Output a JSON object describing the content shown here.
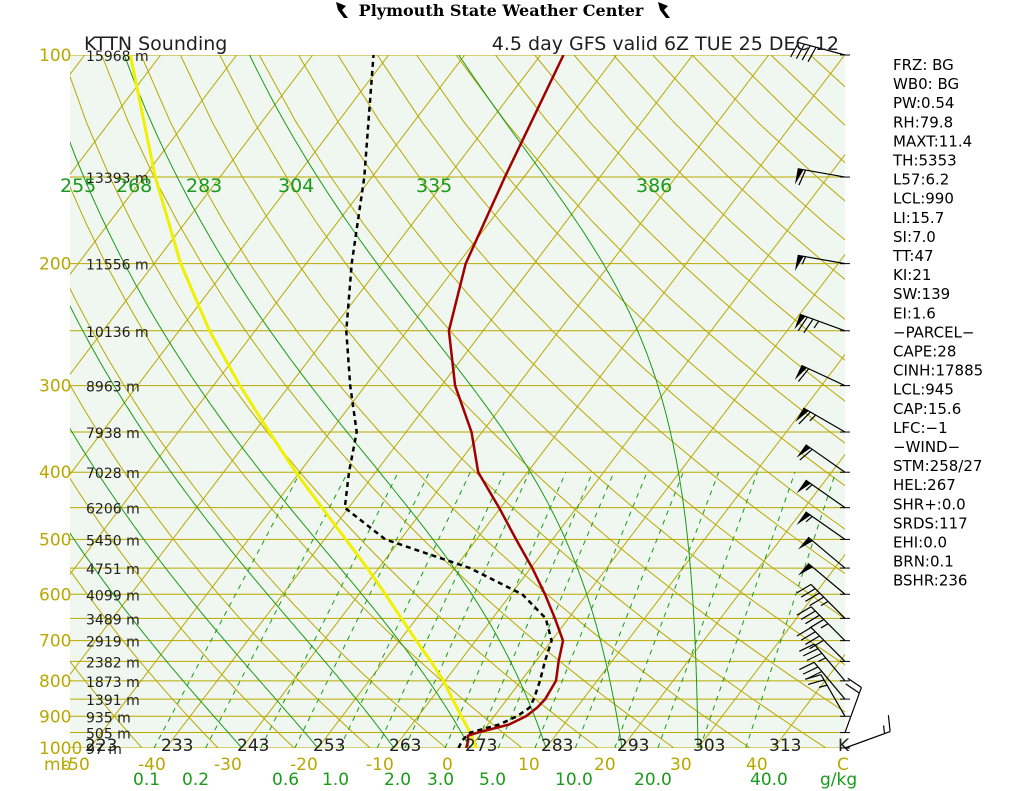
{
  "header": {
    "title": "Plymouth State Weather Center",
    "subtitle_left": "KTTN Sounding",
    "subtitle_right": "4.5 day GFS valid 6Z TUE 25 DEC 12"
  },
  "colors": {
    "background": "#f0f7f0",
    "isobar": "#b8a800",
    "isotherm": "#b8a800",
    "dry_adiabat": "#b8a800",
    "moist_adiabat": "#1a9a1a",
    "mixing_ratio": "#1a9a1a",
    "temperature": "#a00000",
    "dewpoint": "#000000",
    "parcel": "#f0f000",
    "wind": "#000000"
  },
  "icons": {
    "left_flag": "flag-icon",
    "right_flag": "flag-icon"
  },
  "chart_data": {
    "type": "skew-t",
    "pressure_levels": [
      {
        "p": 100,
        "label": "100",
        "height": "15968 m"
      },
      {
        "p": 150,
        "label": "",
        "height": "13393 m"
      },
      {
        "p": 200,
        "label": "200",
        "height": "11556 m"
      },
      {
        "p": 250,
        "label": "",
        "height": "10136 m"
      },
      {
        "p": 300,
        "label": "300",
        "height": "8963 m"
      },
      {
        "p": 350,
        "label": "",
        "height": "7938 m"
      },
      {
        "p": 400,
        "label": "400",
        "height": "7028 m"
      },
      {
        "p": 450,
        "label": "",
        "height": "6206 m"
      },
      {
        "p": 500,
        "label": "500",
        "height": "5450 m"
      },
      {
        "p": 550,
        "label": "",
        "height": "4751 m"
      },
      {
        "p": 600,
        "label": "600",
        "height": "4099 m"
      },
      {
        "p": 650,
        "label": "",
        "height": "3489 m"
      },
      {
        "p": 700,
        "label": "700",
        "height": "2919 m"
      },
      {
        "p": 750,
        "label": "",
        "height": "2382 m"
      },
      {
        "p": 800,
        "label": "800",
        "height": "1873 m"
      },
      {
        "p": 850,
        "label": "",
        "height": "1391 m"
      },
      {
        "p": 900,
        "label": "900",
        "height": "935 m"
      },
      {
        "p": 950,
        "label": "",
        "height": "505 m"
      },
      {
        "p": 1000,
        "label": "1000",
        "height": "97 m"
      }
    ],
    "pressure_unit": "mb",
    "temperature_ticks": [
      "-50",
      "-40",
      "-30",
      "-20",
      "-10",
      "0",
      "10",
      "20",
      "30",
      "40"
    ],
    "temperature_unit": "C",
    "kelvin_ticks": [
      "223",
      "233",
      "243",
      "253",
      "263",
      "273",
      "283",
      "293",
      "303",
      "313"
    ],
    "kelvin_unit": "K",
    "mixing_ratio_ticks": [
      "0.1",
      "0.2",
      "0.6",
      "1.0",
      "2.0",
      "3.0",
      "5.0",
      "10.0",
      "20.0",
      "40.0"
    ],
    "mixing_ratio_unit": "g/kg",
    "theta_e_labels": [
      "255",
      "268",
      "283",
      "304",
      "335",
      "386"
    ],
    "temperature_profile": [
      [
        1000,
        -0.5
      ],
      [
        975,
        -1.0
      ],
      [
        960,
        -1.5
      ],
      [
        950,
        -0.5
      ],
      [
        925,
        2.8
      ],
      [
        900,
        4.2
      ],
      [
        875,
        4.8
      ],
      [
        850,
        5.0
      ],
      [
        800,
        4.6
      ],
      [
        750,
        3.0
      ],
      [
        700,
        1.5
      ],
      [
        650,
        -1.8
      ],
      [
        600,
        -5.5
      ],
      [
        550,
        -9.8
      ],
      [
        500,
        -14.8
      ],
      [
        450,
        -20.2
      ],
      [
        400,
        -26.5
      ],
      [
        350,
        -31.4
      ],
      [
        300,
        -38.2
      ],
      [
        250,
        -44.5
      ],
      [
        200,
        -49.0
      ],
      [
        150,
        -52.5
      ],
      [
        100,
        -57.0
      ]
    ],
    "dewpoint_profile": [
      [
        1000,
        -1.5
      ],
      [
        975,
        -1.8
      ],
      [
        950,
        -1.5
      ],
      [
        925,
        1.5
      ],
      [
        900,
        3.0
      ],
      [
        875,
        3.8
      ],
      [
        850,
        3.5
      ],
      [
        800,
        2.5
      ],
      [
        750,
        1.2
      ],
      [
        700,
        0.0
      ],
      [
        650,
        -3.0
      ],
      [
        600,
        -8.5
      ],
      [
        550,
        -18.0
      ],
      [
        500,
        -32.0
      ],
      [
        450,
        -40.5
      ],
      [
        400,
        -43.5
      ],
      [
        350,
        -46.5
      ],
      [
        300,
        -52.0
      ],
      [
        250,
        -58.0
      ],
      [
        200,
        -64.0
      ],
      [
        150,
        -71.0
      ],
      [
        100,
        -82.0
      ]
    ],
    "parcel_profile": [
      [
        1000,
        0.8
      ],
      [
        950,
        -1.5
      ],
      [
        900,
        -4.3
      ],
      [
        850,
        -7.2
      ],
      [
        800,
        -10.2
      ],
      [
        750,
        -13.8
      ],
      [
        700,
        -17.8
      ],
      [
        650,
        -22.0
      ],
      [
        600,
        -26.5
      ],
      [
        550,
        -31.5
      ],
      [
        500,
        -37.2
      ],
      [
        450,
        -43.5
      ],
      [
        400,
        -50.5
      ],
      [
        350,
        -58.0
      ],
      [
        300,
        -66.5
      ],
      [
        250,
        -76.0
      ],
      [
        200,
        -86.5
      ],
      [
        150,
        -98.5
      ],
      [
        100,
        -114.0
      ]
    ],
    "winds": [
      {
        "p": 100,
        "dir": 285,
        "spd": 40
      },
      {
        "p": 150,
        "dir": 280,
        "spd": 60
      },
      {
        "p": 200,
        "dir": 280,
        "spd": 55
      },
      {
        "p": 250,
        "dir": 290,
        "spd": 75
      },
      {
        "p": 300,
        "dir": 295,
        "spd": 60
      },
      {
        "p": 350,
        "dir": 300,
        "spd": 65
      },
      {
        "p": 400,
        "dir": 305,
        "spd": 60
      },
      {
        "p": 450,
        "dir": 305,
        "spd": 55
      },
      {
        "p": 500,
        "dir": 305,
        "spd": 55
      },
      {
        "p": 550,
        "dir": 310,
        "spd": 50
      },
      {
        "p": 600,
        "dir": 310,
        "spd": 50
      },
      {
        "p": 650,
        "dir": 315,
        "spd": 45
      },
      {
        "p": 700,
        "dir": 315,
        "spd": 45
      },
      {
        "p": 750,
        "dir": 315,
        "spd": 40
      },
      {
        "p": 800,
        "dir": 320,
        "spd": 35
      },
      {
        "p": 850,
        "dir": 320,
        "spd": 30
      },
      {
        "p": 900,
        "dir": 330,
        "spd": 25
      },
      {
        "p": 950,
        "dir": 20,
        "spd": 20
      },
      {
        "p": 1000,
        "dir": 70,
        "spd": 15
      }
    ]
  },
  "indices": [
    "FRZ: BG",
    "WB0: BG",
    "PW:0.54",
    "RH:79.8",
    "MAXT:11.4",
    "TH:5353",
    "L57:6.2",
    "LCL:990",
    "LI:15.7",
    "SI:7.0",
    "TT:47",
    "KI:21",
    "SW:139",
    "EI:1.6",
    "−PARCEL−",
    "CAPE:28",
    "CINH:17885",
    "LCL:945",
    "CAP:15.6",
    "LFC:−1",
    "−WIND−",
    "STM:258/27",
    "HEL:267",
    "SHR+:0.0",
    "SRDS:117",
    "EHI:0.0",
    "BRN:0.1",
    "BSHR:236"
  ]
}
